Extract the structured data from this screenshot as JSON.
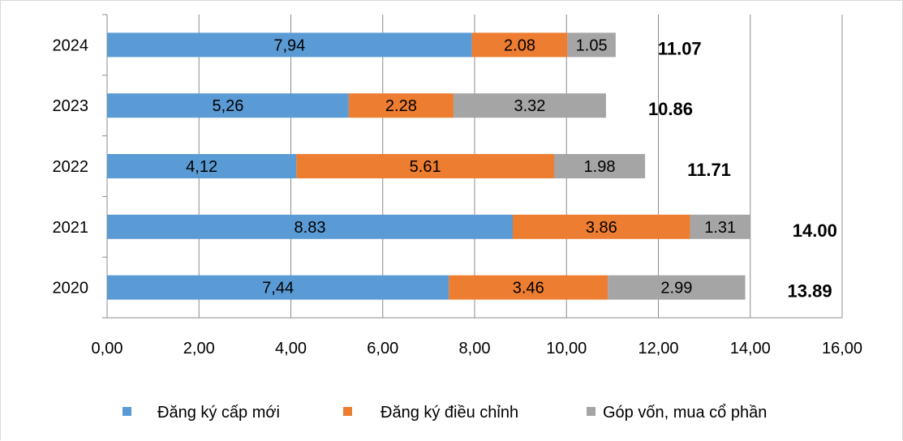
{
  "chart_data": {
    "type": "bar",
    "orientation": "horizontal",
    "stacked": true,
    "categories": [
      "2024",
      "2023",
      "2022",
      "2021",
      "2020"
    ],
    "series": [
      {
        "name": "Đăng ký cấp mới",
        "color": "#5B9BD5",
        "values": [
          7.94,
          5.26,
          4.12,
          8.83,
          7.44
        ],
        "labels": [
          "7,94",
          "5,26",
          "4,12",
          "8.83",
          "7,44"
        ]
      },
      {
        "name": "Đăng ký điều chỉnh",
        "color": "#ED7D31",
        "values": [
          2.08,
          2.28,
          5.61,
          3.86,
          3.46
        ],
        "labels": [
          "2.08",
          "2.28",
          "5.61",
          "3.86",
          "3.46"
        ]
      },
      {
        "name": "Góp vốn, mua cổ phần",
        "color": "#A5A5A5",
        "values": [
          1.05,
          3.32,
          1.98,
          1.31,
          2.99
        ],
        "labels": [
          "1.05",
          "3.32",
          "1.98",
          "1.31",
          "2.99"
        ]
      }
    ],
    "totals": [
      "11.07",
      "10.86",
      "11.71",
      "14.00",
      "13.89"
    ],
    "xlim": [
      0,
      16
    ],
    "xticks": [
      "0,00",
      "2,00",
      "4,00",
      "6,00",
      "8,00",
      "10,00",
      "12,00",
      "14,00",
      "16,00"
    ],
    "grid": "vertical lines",
    "legend_position": "bottom",
    "title": "",
    "xlabel": "",
    "ylabel": ""
  }
}
